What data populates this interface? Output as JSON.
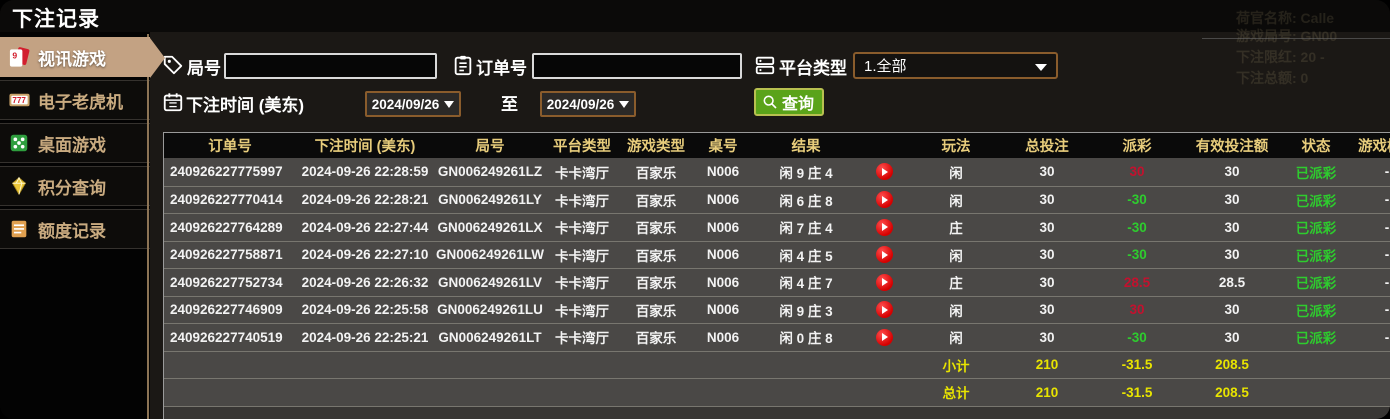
{
  "window": {
    "title": "下注记录"
  },
  "sidebar": {
    "items": [
      {
        "label": "视讯游戏",
        "icon": "cards-icon",
        "active": true
      },
      {
        "label": "电子老虎机",
        "icon": "slot-777-icon",
        "active": false
      },
      {
        "label": "桌面游戏",
        "icon": "dice-icon",
        "active": false
      },
      {
        "label": "积分查询",
        "icon": "gem-icon",
        "active": false
      },
      {
        "label": "额度记录",
        "icon": "ledger-icon",
        "active": false
      }
    ]
  },
  "filters": {
    "round_label": "局号",
    "round_value": "",
    "order_label": "订单号",
    "order_value": "",
    "platform_label": "平台类型",
    "platform_selected": "1.全部",
    "time_label": "下注时间 (美东)",
    "date_from": "2024/09/26",
    "to_label": "至",
    "date_to": "2024/09/26",
    "search_label": "查询"
  },
  "table": {
    "headers": [
      "订单号",
      "下注时间 (美东)",
      "局号",
      "平台类型",
      "游戏类型",
      "桌号",
      "结果",
      "玩法",
      "总投注",
      "派彩",
      "有效投注额",
      "状态",
      "游戏模式"
    ],
    "rows": [
      {
        "order": "240926227775997",
        "time": "2024-09-26 22:28:59",
        "round": "GN006249261LZ",
        "platform": "卡卡湾厅",
        "game": "百家乐",
        "table": "N006",
        "result": "闲 9 庄 4",
        "play": "闲",
        "bet": "30",
        "payout": "30",
        "win": true,
        "valid": "30",
        "status": "已派彩",
        "video": "-"
      },
      {
        "order": "240926227770414",
        "time": "2024-09-26 22:28:21",
        "round": "GN006249261LY",
        "platform": "卡卡湾厅",
        "game": "百家乐",
        "table": "N006",
        "result": "闲 6 庄 8",
        "play": "闲",
        "bet": "30",
        "payout": "-30",
        "win": false,
        "valid": "30",
        "status": "已派彩",
        "video": "-"
      },
      {
        "order": "240926227764289",
        "time": "2024-09-26 22:27:44",
        "round": "GN006249261LX",
        "platform": "卡卡湾厅",
        "game": "百家乐",
        "table": "N006",
        "result": "闲 7 庄 4",
        "play": "庄",
        "bet": "30",
        "payout": "-30",
        "win": false,
        "valid": "30",
        "status": "已派彩",
        "video": "-"
      },
      {
        "order": "240926227758871",
        "time": "2024-09-26 22:27:10",
        "round": "GN006249261LW",
        "platform": "卡卡湾厅",
        "game": "百家乐",
        "table": "N006",
        "result": "闲 4 庄 5",
        "play": "闲",
        "bet": "30",
        "payout": "-30",
        "win": false,
        "valid": "30",
        "status": "已派彩",
        "video": "-"
      },
      {
        "order": "240926227752734",
        "time": "2024-09-26 22:26:32",
        "round": "GN006249261LV",
        "platform": "卡卡湾厅",
        "game": "百家乐",
        "table": "N006",
        "result": "闲 4 庄 7",
        "play": "庄",
        "bet": "30",
        "payout": "28.5",
        "win": true,
        "valid": "28.5",
        "status": "已派彩",
        "video": "-"
      },
      {
        "order": "240926227746909",
        "time": "2024-09-26 22:25:58",
        "round": "GN006249261LU",
        "platform": "卡卡湾厅",
        "game": "百家乐",
        "table": "N006",
        "result": "闲 9 庄 3",
        "play": "闲",
        "bet": "30",
        "payout": "30",
        "win": true,
        "valid": "30",
        "status": "已派彩",
        "video": "-"
      },
      {
        "order": "240926227740519",
        "time": "2024-09-26 22:25:21",
        "round": "GN006249261LT",
        "platform": "卡卡湾厅",
        "game": "百家乐",
        "table": "N006",
        "result": "闲 0 庄 8",
        "play": "闲",
        "bet": "30",
        "payout": "-30",
        "win": false,
        "valid": "30",
        "status": "已派彩",
        "video": "-"
      }
    ],
    "subtotal": {
      "label": "小计",
      "bet": "210",
      "payout": "-31.5",
      "valid": "208.5"
    },
    "total": {
      "label": "总计",
      "bet": "210",
      "payout": "-31.5",
      "valid": "208.5"
    }
  },
  "ghost_panel": {
    "lines": [
      "荷官名称: Calle",
      "游戏局号: GN00",
      "下注限红: 20 -",
      "下注总额: 0"
    ]
  },
  "colors": {
    "accent_tan": "#c3a283",
    "header_gold": "#e8cd7c",
    "win_red": "#c3112e",
    "lose_green": "#2ecc2e",
    "total_yellow": "#e8e400",
    "date_border": "#8a5c2c",
    "search_green": "#5aa31a"
  }
}
